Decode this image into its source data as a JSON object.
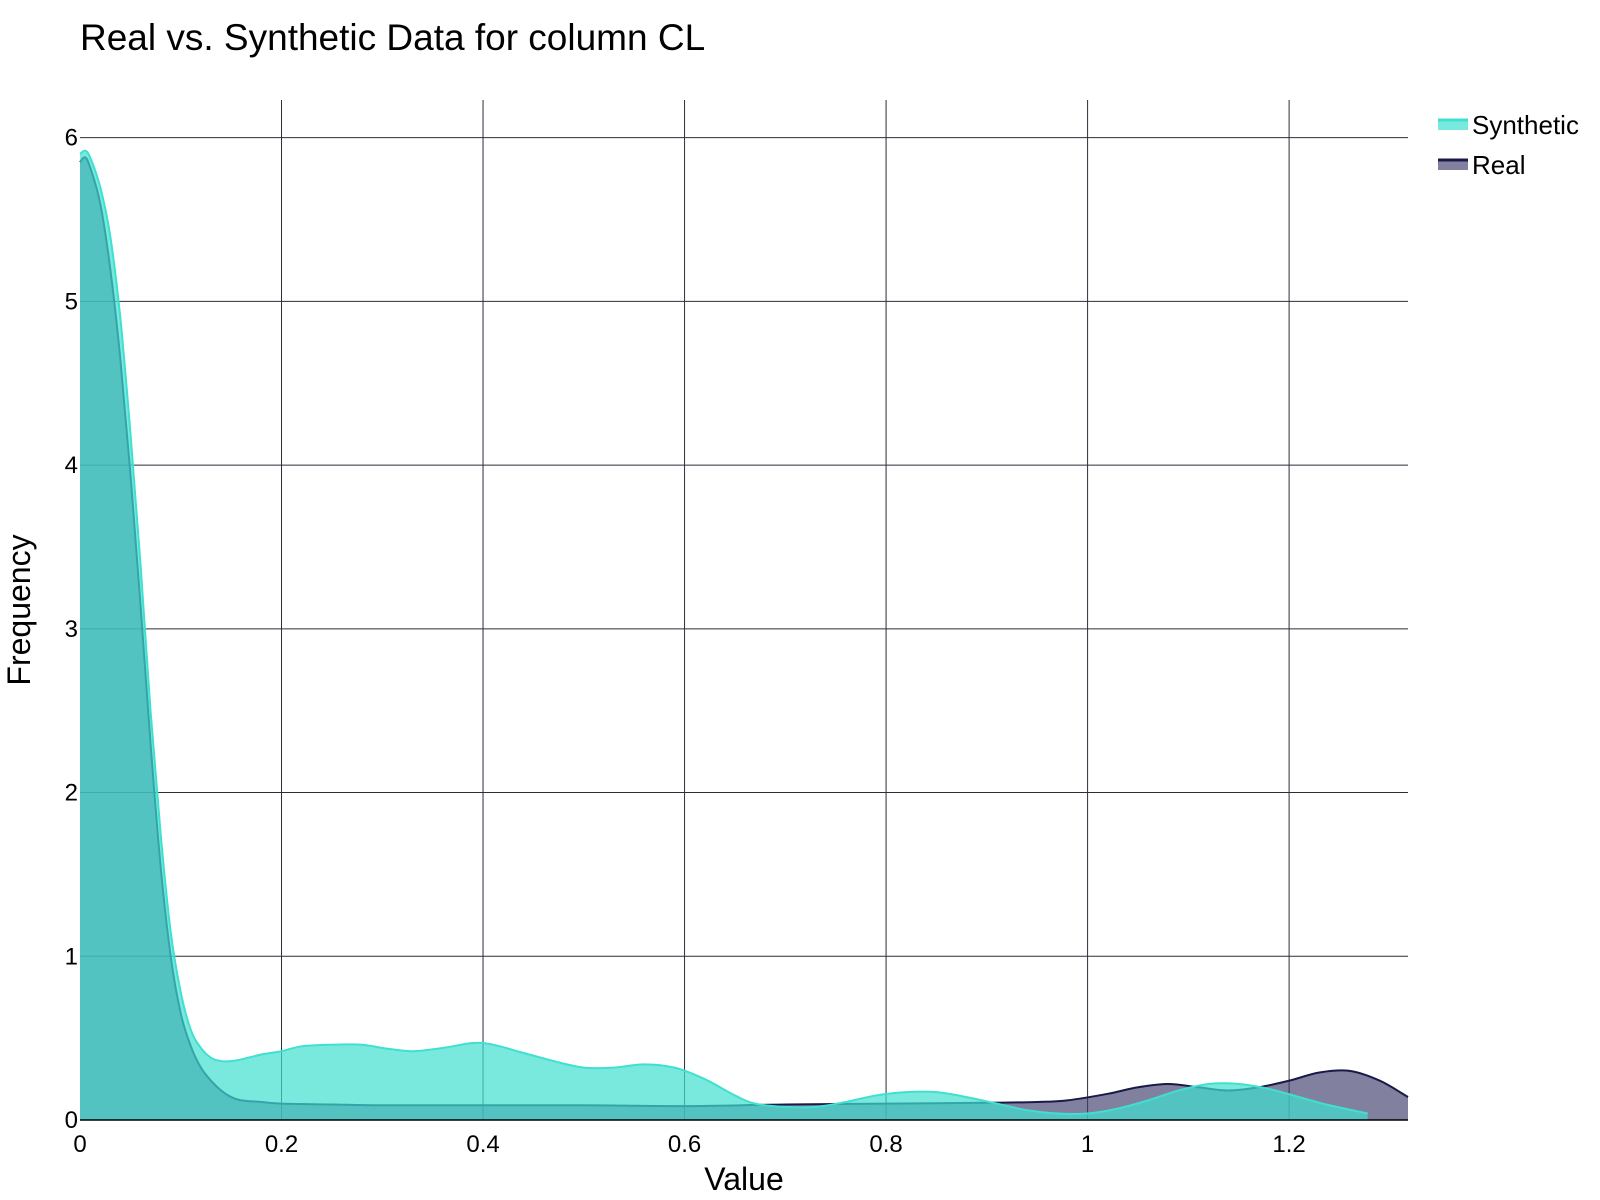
{
  "chart_data": {
    "type": "area",
    "title": "Real vs. Synthetic Data for column CL",
    "xlabel": "Value",
    "ylabel": "Frequency",
    "xlim": [
      0,
      1.318
    ],
    "ylim": [
      0,
      6.23
    ],
    "x_ticks": [
      0,
      0.2,
      0.4,
      0.6,
      0.8,
      1,
      1.2
    ],
    "x_tick_labels": [
      "0",
      "0.2",
      "0.4",
      "0.6",
      "0.8",
      "1",
      "1.2"
    ],
    "y_ticks": [
      0,
      1,
      2,
      3,
      4,
      5,
      6
    ],
    "y_tick_labels": [
      "0",
      "1",
      "2",
      "3",
      "4",
      "5",
      "6"
    ],
    "grid": true,
    "legend_position": "top-right",
    "series": [
      {
        "name": "Synthetic",
        "color": "#40E0D0",
        "fill": "#40E0D0",
        "fill_opacity": 0.7,
        "x": [
          0,
          0.005,
          0.01,
          0.02,
          0.03,
          0.04,
          0.05,
          0.06,
          0.07,
          0.08,
          0.09,
          0.1,
          0.11,
          0.12,
          0.13,
          0.14,
          0.15,
          0.16,
          0.18,
          0.2,
          0.22,
          0.25,
          0.28,
          0.3,
          0.33,
          0.36,
          0.39,
          0.41,
          0.44,
          0.47,
          0.5,
          0.53,
          0.56,
          0.59,
          0.62,
          0.65,
          0.67,
          0.7,
          0.73,
          0.76,
          0.79,
          0.82,
          0.85,
          0.88,
          0.91,
          0.94,
          0.97,
          1,
          1.03,
          1.06,
          1.09,
          1.12,
          1.15,
          1.18,
          1.21,
          1.24,
          1.278
        ],
        "y": [
          5.9,
          5.92,
          5.88,
          5.7,
          5.4,
          4.9,
          4.2,
          3.4,
          2.5,
          1.75,
          1.15,
          0.78,
          0.55,
          0.44,
          0.38,
          0.36,
          0.36,
          0.37,
          0.4,
          0.42,
          0.45,
          0.46,
          0.46,
          0.44,
          0.42,
          0.44,
          0.47,
          0.46,
          0.41,
          0.36,
          0.32,
          0.32,
          0.34,
          0.32,
          0.25,
          0.15,
          0.1,
          0.08,
          0.08,
          0.11,
          0.15,
          0.17,
          0.17,
          0.14,
          0.1,
          0.06,
          0.04,
          0.04,
          0.07,
          0.12,
          0.18,
          0.22,
          0.22,
          0.19,
          0.14,
          0.09,
          0.04
        ]
      },
      {
        "name": "Real",
        "color": "#1a1a4a",
        "fill": "#3d3d6b",
        "fill_opacity": 0.65,
        "x": [
          0,
          0.005,
          0.01,
          0.02,
          0.03,
          0.04,
          0.05,
          0.06,
          0.07,
          0.08,
          0.09,
          0.1,
          0.11,
          0.12,
          0.13,
          0.14,
          0.15,
          0.16,
          0.18,
          0.2,
          0.25,
          0.3,
          0.4,
          0.5,
          0.6,
          0.7,
          0.8,
          0.9,
          0.95,
          0.98,
          1.02,
          1.05,
          1.08,
          1.11,
          1.14,
          1.17,
          1.2,
          1.23,
          1.26,
          1.29,
          1.318
        ],
        "y": [
          5.85,
          5.88,
          5.82,
          5.6,
          5.2,
          4.65,
          3.95,
          3.15,
          2.3,
          1.55,
          1.0,
          0.65,
          0.45,
          0.32,
          0.24,
          0.18,
          0.14,
          0.12,
          0.11,
          0.1,
          0.095,
          0.09,
          0.09,
          0.09,
          0.085,
          0.095,
          0.1,
          0.105,
          0.11,
          0.12,
          0.16,
          0.2,
          0.22,
          0.2,
          0.18,
          0.2,
          0.24,
          0.29,
          0.3,
          0.24,
          0.14
        ]
      }
    ]
  }
}
